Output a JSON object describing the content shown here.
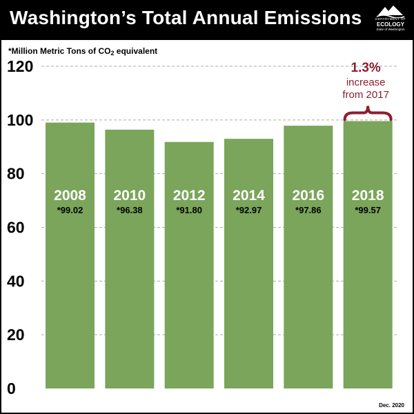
{
  "header": {
    "title": "Washington’s Total Annual Emissions",
    "logo": {
      "line1": "DEPARTMENT OF",
      "line2": "ECOLOGY",
      "line3": "State of Washington"
    }
  },
  "units_label": {
    "prefix": "*Million Metric Tons of CO",
    "subscript": "2",
    "suffix": " equivalent"
  },
  "footnote": "Dec. 2020",
  "colors": {
    "bar": "#7aa55a",
    "callout": "#8b1f2f",
    "grid": "#aaaaaa"
  },
  "chart_data": {
    "type": "bar",
    "categories": [
      "2008",
      "2010",
      "2012",
      "2014",
      "2016",
      "2018"
    ],
    "values": [
      99.02,
      96.38,
      91.8,
      92.97,
      97.86,
      99.57
    ],
    "value_labels": [
      "*99.02",
      "*96.38",
      "*91.80",
      "*92.97",
      "*97.86",
      "*99.57"
    ],
    "ylim": [
      0,
      120
    ],
    "yticks": [
      0,
      20,
      40,
      60,
      80,
      100,
      120
    ],
    "ytick_labels": [
      "0",
      "20",
      "40",
      "60",
      "80",
      "100",
      "120"
    ],
    "grid": true,
    "title": "Washington’s Total Annual Emissions",
    "ylabel": "*Million Metric Tons of CO2 equivalent",
    "xlabel": "",
    "annotation": {
      "category": "2018",
      "line1": "1.3%",
      "line2": "increase",
      "line3": "from 2017"
    }
  }
}
